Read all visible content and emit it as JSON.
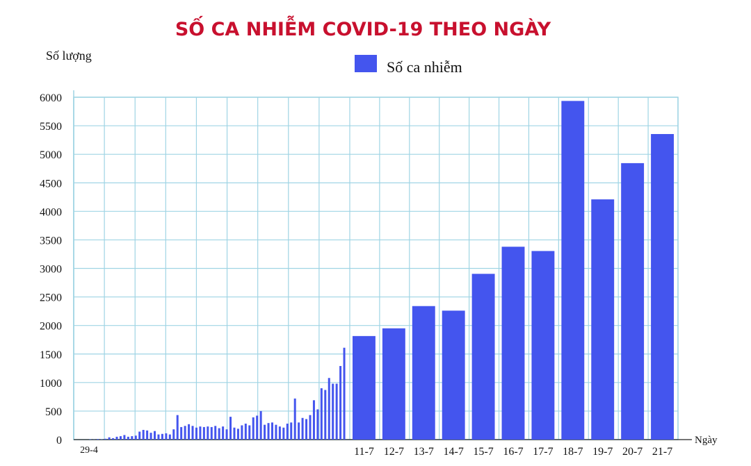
{
  "chart_data": {
    "type": "bar",
    "title": "SỐ CA NHIỄM COVID-19 THEO NGÀY",
    "ylabel": "Số lượng",
    "xlabel": "Ngày",
    "ylim": [
      0,
      6000
    ],
    "yticks": [
      0,
      500,
      1000,
      1500,
      2000,
      2500,
      3000,
      3500,
      4000,
      4500,
      5000,
      5500,
      6000
    ],
    "grid": true,
    "legend_position": "top",
    "series": [
      {
        "name": "Số ca nhiễm",
        "color": "#4455ee"
      }
    ],
    "early_period": {
      "start_label": "29-4",
      "values": [
        0,
        0,
        0,
        5,
        3,
        10,
        5,
        15,
        40,
        25,
        50,
        60,
        80,
        50,
        60,
        70,
        140,
        170,
        160,
        120,
        150,
        90,
        100,
        110,
        90,
        180,
        430,
        220,
        240,
        270,
        240,
        210,
        230,
        220,
        230,
        220,
        240,
        200,
        230,
        180,
        400,
        210,
        190,
        250,
        280,
        250,
        390,
        420,
        500,
        260,
        290,
        300,
        260,
        230,
        210,
        280,
        300,
        720,
        300,
        380,
        360,
        430,
        690,
        530,
        900,
        870,
        1080,
        980,
        980,
        1290,
        1610
      ]
    },
    "daily": {
      "categories": [
        "11-7",
        "12-7",
        "13-7",
        "14-7",
        "15-7",
        "16-7",
        "17-7",
        "18-7",
        "19-7",
        "20-7",
        "21-7"
      ],
      "values": [
        1815,
        1950,
        2340,
        2260,
        2905,
        3380,
        3305,
        5935,
        4210,
        4845,
        5355
      ]
    }
  }
}
